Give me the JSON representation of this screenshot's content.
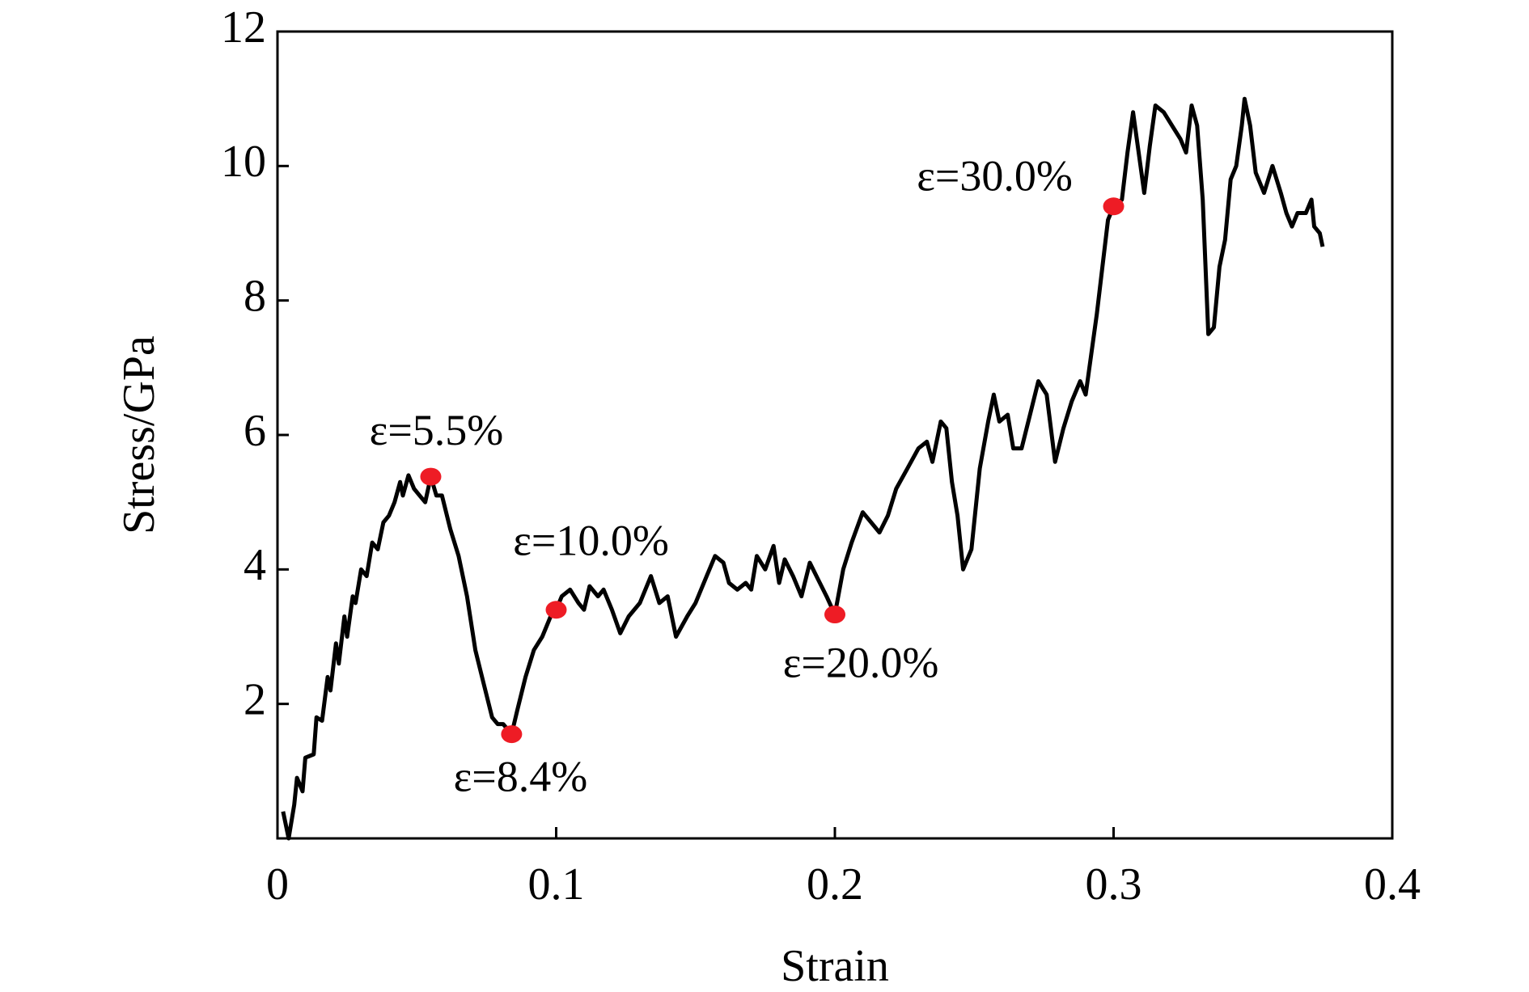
{
  "chart_data": {
    "type": "line",
    "x_label": "Strain",
    "y_label": "Stress/GPa",
    "xlim": [
      0,
      0.4
    ],
    "ylim": [
      0,
      12
    ],
    "xticks": [
      0,
      0.1,
      0.2,
      0.3,
      0.4
    ],
    "yticks": [
      2,
      4,
      6,
      8,
      10,
      12
    ],
    "x": [
      0.002,
      0.004,
      0.006,
      0.007,
      0.009,
      0.01,
      0.013,
      0.014,
      0.016,
      0.018,
      0.019,
      0.021,
      0.022,
      0.024,
      0.025,
      0.027,
      0.028,
      0.03,
      0.032,
      0.034,
      0.036,
      0.038,
      0.04,
      0.042,
      0.044,
      0.045,
      0.047,
      0.049,
      0.051,
      0.053,
      0.055,
      0.057,
      0.059,
      0.062,
      0.065,
      0.068,
      0.071,
      0.074,
      0.077,
      0.079,
      0.081,
      0.084,
      0.086,
      0.089,
      0.092,
      0.095,
      0.098,
      0.1,
      0.102,
      0.105,
      0.108,
      0.11,
      0.112,
      0.115,
      0.117,
      0.12,
      0.123,
      0.126,
      0.13,
      0.134,
      0.137,
      0.14,
      0.143,
      0.147,
      0.15,
      0.154,
      0.157,
      0.16,
      0.162,
      0.165,
      0.168,
      0.17,
      0.172,
      0.175,
      0.178,
      0.18,
      0.182,
      0.185,
      0.188,
      0.191,
      0.194,
      0.197,
      0.2,
      0.203,
      0.206,
      0.21,
      0.213,
      0.216,
      0.219,
      0.222,
      0.226,
      0.23,
      0.233,
      0.235,
      0.238,
      0.24,
      0.242,
      0.244,
      0.246,
      0.249,
      0.252,
      0.255,
      0.257,
      0.259,
      0.262,
      0.264,
      0.267,
      0.27,
      0.273,
      0.276,
      0.279,
      0.282,
      0.285,
      0.288,
      0.29,
      0.292,
      0.294,
      0.296,
      0.298,
      0.3,
      0.303,
      0.305,
      0.307,
      0.309,
      0.311,
      0.313,
      0.315,
      0.318,
      0.321,
      0.324,
      0.326,
      0.328,
      0.33,
      0.332,
      0.334,
      0.336,
      0.338,
      0.34,
      0.342,
      0.344,
      0.346,
      0.347,
      0.349,
      0.351,
      0.354,
      0.357,
      0.36,
      0.362,
      0.364,
      0.366,
      0.369,
      0.371,
      0.372,
      0.374,
      0.375
    ],
    "series": [
      {
        "color": "#000000",
        "values": [
          0.4,
          0.0,
          0.5,
          0.9,
          0.7,
          1.2,
          1.25,
          1.8,
          1.75,
          2.4,
          2.2,
          2.9,
          2.6,
          3.3,
          3.0,
          3.6,
          3.5,
          4.0,
          3.9,
          4.4,
          4.3,
          4.7,
          4.8,
          5.0,
          5.3,
          5.1,
          5.4,
          5.2,
          5.1,
          5.0,
          5.38,
          5.1,
          5.1,
          4.6,
          4.2,
          3.6,
          2.8,
          2.3,
          1.8,
          1.7,
          1.7,
          1.55,
          1.9,
          2.4,
          2.8,
          3.0,
          3.3,
          3.4,
          3.6,
          3.7,
          3.5,
          3.4,
          3.75,
          3.6,
          3.7,
          3.4,
          3.05,
          3.3,
          3.5,
          3.9,
          3.5,
          3.6,
          3.0,
          3.3,
          3.5,
          3.9,
          4.2,
          4.1,
          3.8,
          3.7,
          3.8,
          3.7,
          4.2,
          4.0,
          4.35,
          3.8,
          4.15,
          3.9,
          3.6,
          4.1,
          3.85,
          3.6,
          3.33,
          4.0,
          4.4,
          4.85,
          4.7,
          4.55,
          4.8,
          5.2,
          5.5,
          5.8,
          5.9,
          5.6,
          6.2,
          6.1,
          5.3,
          4.8,
          4.0,
          4.3,
          5.5,
          6.2,
          6.6,
          6.2,
          6.3,
          5.8,
          5.8,
          6.3,
          6.8,
          6.6,
          5.6,
          6.1,
          6.5,
          6.8,
          6.6,
          7.2,
          7.8,
          8.5,
          9.2,
          9.4,
          9.5,
          10.2,
          10.8,
          10.2,
          9.6,
          10.3,
          10.9,
          10.8,
          10.6,
          10.4,
          10.2,
          10.9,
          10.6,
          9.5,
          7.5,
          7.6,
          8.5,
          8.9,
          9.8,
          10.0,
          10.6,
          11.0,
          10.6,
          9.9,
          9.6,
          10.0,
          9.6,
          9.3,
          9.1,
          9.3,
          9.3,
          9.5,
          9.1,
          9.0,
          8.8
        ]
      }
    ],
    "points": {
      "color": "#ee1c25",
      "x": [
        0.055,
        0.084,
        0.1,
        0.2,
        0.3
      ],
      "y": [
        5.38,
        1.55,
        3.4,
        3.33,
        9.4
      ],
      "labels": [
        "ε=5.5%",
        "ε=8.4%",
        "ε=10.0%",
        "ε=20.0%",
        "ε=30.0%"
      ]
    }
  }
}
